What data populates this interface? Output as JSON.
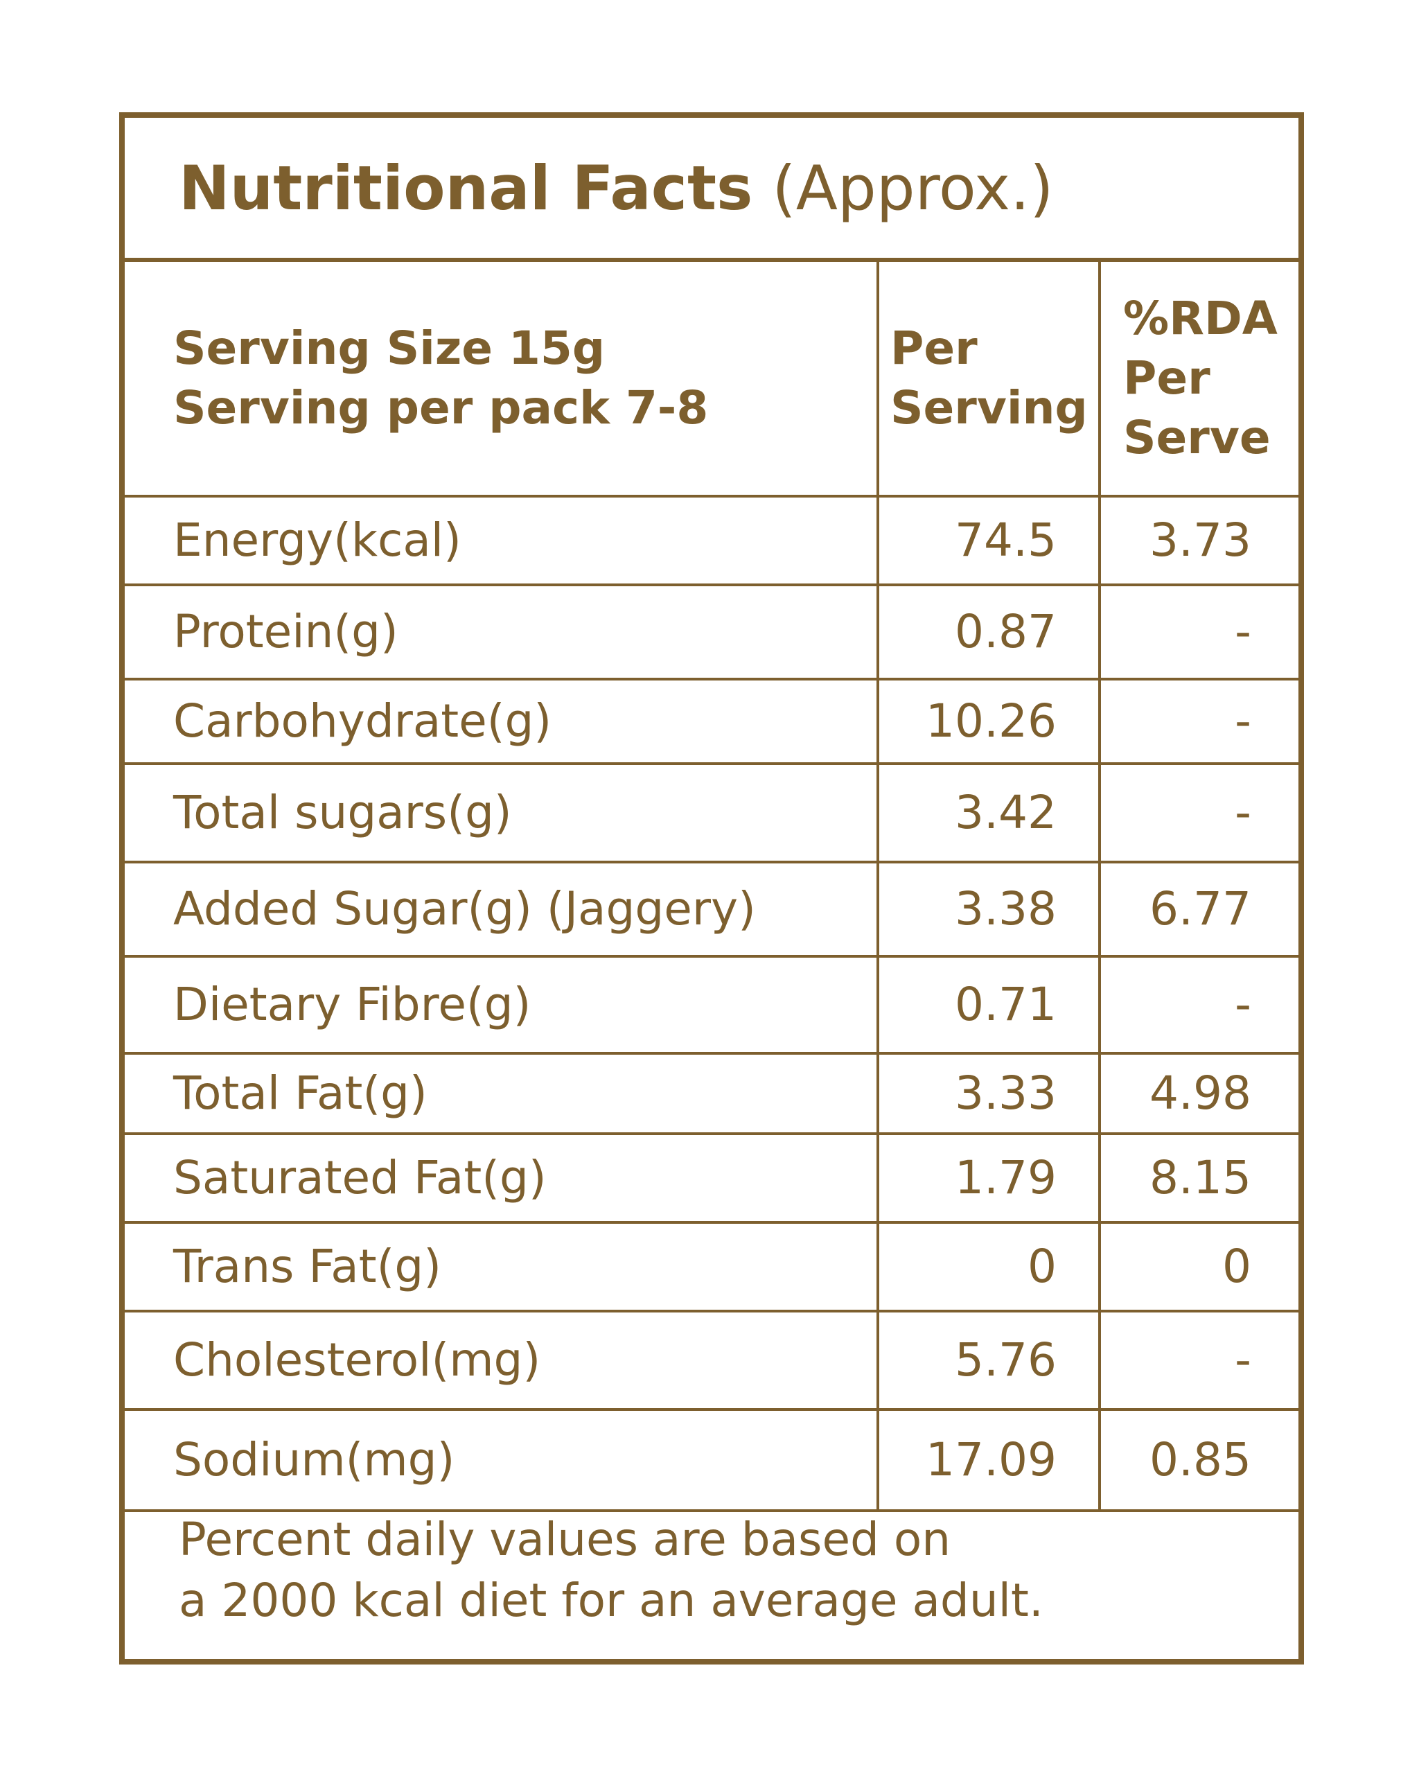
{
  "title": {
    "main": "Nutritional Facts",
    "sub": "(Approx.)"
  },
  "header": {
    "serving_size": "Serving Size 15g",
    "serving_per_pack": "Serving per pack 7-8",
    "per_serving_line1": "Per",
    "per_serving_line2": "Serving",
    "rda_line1": "%RDA",
    "rda_line2": "Per",
    "rda_line3": "Serve"
  },
  "rows": [
    {
      "name": "Energy(kcal)",
      "per_serving": "74.5",
      "rda": "3.73"
    },
    {
      "name": "Protein(g)",
      "per_serving": "0.87",
      "rda": "-"
    },
    {
      "name": "Carbohydrate(g)",
      "per_serving": "10.26",
      "rda": "-"
    },
    {
      "name": "Total sugars(g)",
      "per_serving": "3.42",
      "rda": "-"
    },
    {
      "name": "Added Sugar(g) (Jaggery)",
      "per_serving": "3.38",
      "rda": "6.77"
    },
    {
      "name": "Dietary Fibre(g)",
      "per_serving": "0.71",
      "rda": "-"
    },
    {
      "name": "Total Fat(g)",
      "per_serving": "3.33",
      "rda": "4.98"
    },
    {
      "name": "Saturated Fat(g)",
      "per_serving": "1.79",
      "rda": "8.15"
    },
    {
      "name": "Trans Fat(g)",
      "per_serving": "0",
      "rda": "0"
    },
    {
      "name": "Cholesterol(mg)",
      "per_serving": "5.76",
      "rda": "-"
    },
    {
      "name": "Sodium(mg)",
      "per_serving": "17.09",
      "rda": "0.85"
    }
  ],
  "footer": {
    "line1": "Percent daily values are based on",
    "line2": "a 2000 kcal diet for an average adult."
  },
  "colors": {
    "text": "#7d5f2e",
    "border": "#7d5f2e",
    "background": "#ffffff"
  }
}
